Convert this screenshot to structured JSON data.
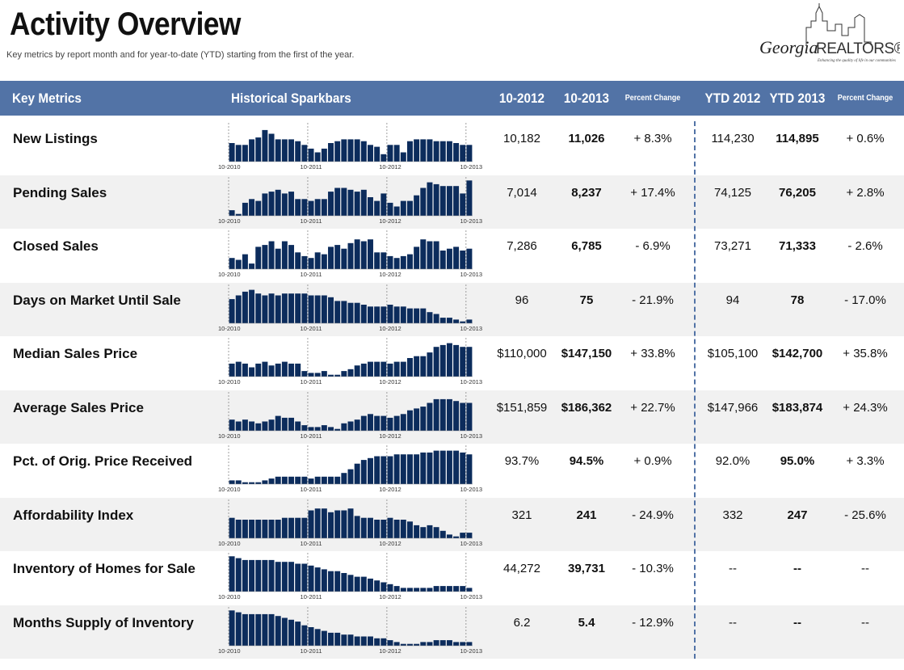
{
  "header": {
    "title": "Activity Overview",
    "subtitle": "Key metrics by report month and for year-to-date (YTD) starting from the first of the year."
  },
  "logo": {
    "script": "Georgia",
    "brand": "REALTORS®",
    "tagline": "Enhancing the quality of life in our communities"
  },
  "table": {
    "columns": [
      "Key Metrics",
      "Historical Sparkbars",
      "10-2012",
      "10-2013",
      "Percent Change",
      "YTD 2012",
      "YTD 2013",
      "Percent Change"
    ],
    "sparkbar_labels": [
      "10-2010",
      "10-2011",
      "10-2012",
      "10-2013"
    ],
    "rows": [
      {
        "metric": "New Listings",
        "sparkbars": [
          50,
          45,
          45,
          60,
          65,
          85,
          75,
          60,
          60,
          60,
          55,
          45,
          35,
          25,
          35,
          50,
          55,
          60,
          60,
          60,
          55,
          45,
          40,
          20,
          45,
          45,
          25,
          55,
          60,
          60,
          60,
          55,
          55,
          55,
          50,
          45,
          45
        ],
        "m2012": "10,182",
        "m2013": "11,026",
        "pct": "+ 8.3%",
        "ytd2012": "114,230",
        "ytd2013": "114,895",
        "ytdpct": "+ 0.6%"
      },
      {
        "metric": "Pending Sales",
        "sparkbars": [
          15,
          5,
          35,
          45,
          40,
          60,
          65,
          70,
          60,
          65,
          45,
          45,
          40,
          45,
          45,
          65,
          75,
          75,
          70,
          65,
          70,
          50,
          40,
          60,
          35,
          25,
          40,
          40,
          55,
          75,
          90,
          85,
          80,
          80,
          80,
          60,
          95
        ],
        "m2012": "7,014",
        "m2013": "8,237",
        "pct": "+ 17.4%",
        "ytd2012": "74,125",
        "ytd2013": "76,205",
        "ytdpct": "+ 2.8%"
      },
      {
        "metric": "Closed Sales",
        "sparkbars": [
          30,
          25,
          40,
          15,
          60,
          65,
          75,
          55,
          75,
          65,
          45,
          35,
          30,
          45,
          40,
          60,
          65,
          55,
          70,
          80,
          75,
          80,
          45,
          45,
          35,
          30,
          35,
          40,
          60,
          80,
          75,
          75,
          50,
          55,
          60,
          50,
          55
        ],
        "m2012": "7,286",
        "m2013": "6,785",
        "pct": "- 6.9%",
        "ytd2012": "73,271",
        "ytd2013": "71,333",
        "ytdpct": "- 2.6%"
      },
      {
        "metric": "Days on Market Until Sale",
        "sparkbars": [
          65,
          75,
          85,
          90,
          80,
          75,
          80,
          75,
          80,
          80,
          80,
          80,
          75,
          75,
          75,
          70,
          60,
          60,
          55,
          55,
          50,
          45,
          45,
          45,
          50,
          45,
          45,
          40,
          40,
          40,
          30,
          25,
          15,
          15,
          10,
          5,
          10
        ],
        "m2012": "96",
        "m2013": "75",
        "pct": "- 21.9%",
        "ytd2012": "94",
        "ytd2013": "78",
        "ytdpct": "- 17.0%"
      },
      {
        "metric": "Median Sales Price",
        "sparkbars": [
          35,
          40,
          35,
          25,
          35,
          40,
          30,
          35,
          40,
          35,
          35,
          15,
          10,
          10,
          15,
          5,
          5,
          15,
          20,
          30,
          35,
          40,
          40,
          40,
          35,
          40,
          40,
          50,
          55,
          55,
          65,
          80,
          85,
          90,
          85,
          80,
          80
        ],
        "m2012": "$110,000",
        "m2013": "$147,150",
        "pct": "+ 33.8%",
        "ytd2012": "$105,100",
        "ytd2013": "$142,700",
        "ytdpct": "+ 35.8%"
      },
      {
        "metric": "Average Sales Price",
        "sparkbars": [
          30,
          25,
          30,
          25,
          20,
          25,
          30,
          40,
          35,
          35,
          25,
          15,
          10,
          10,
          15,
          10,
          5,
          20,
          25,
          30,
          40,
          45,
          40,
          40,
          35,
          40,
          45,
          55,
          60,
          65,
          75,
          85,
          85,
          85,
          80,
          75,
          75
        ],
        "m2012": "$151,859",
        "m2013": "$186,362",
        "pct": "+ 22.7%",
        "ytd2012": "$147,966",
        "ytd2013": "$183,874",
        "ytdpct": "+ 24.3%"
      },
      {
        "metric": "Pct. of Orig. Price Received",
        "sparkbars": [
          10,
          10,
          5,
          5,
          5,
          10,
          15,
          20,
          20,
          20,
          20,
          20,
          15,
          20,
          20,
          20,
          20,
          30,
          40,
          55,
          65,
          70,
          75,
          75,
          75,
          80,
          80,
          80,
          80,
          85,
          85,
          90,
          90,
          90,
          90,
          85,
          80
        ],
        "m2012": "93.7%",
        "m2013": "94.5%",
        "pct": "+ 0.9%",
        "ytd2012": "92.0%",
        "ytd2013": "95.0%",
        "ytdpct": "+ 3.3%"
      },
      {
        "metric": "Affordability Index",
        "sparkbars": [
          55,
          50,
          50,
          50,
          50,
          50,
          50,
          50,
          55,
          55,
          55,
          55,
          75,
          80,
          80,
          70,
          75,
          75,
          80,
          60,
          55,
          55,
          50,
          50,
          55,
          50,
          50,
          45,
          35,
          30,
          35,
          30,
          20,
          10,
          5,
          15,
          15
        ],
        "m2012": "321",
        "m2013": "241",
        "pct": "- 24.9%",
        "ytd2012": "332",
        "ytd2013": "247",
        "ytdpct": "- 25.6%"
      },
      {
        "metric": "Inventory of Homes for Sale",
        "sparkbars": [
          95,
          90,
          85,
          85,
          85,
          85,
          85,
          80,
          80,
          80,
          75,
          75,
          70,
          65,
          60,
          55,
          55,
          50,
          45,
          40,
          40,
          35,
          30,
          25,
          20,
          15,
          10,
          10,
          10,
          10,
          10,
          15,
          15,
          15,
          15,
          15,
          10
        ],
        "m2012": "44,272",
        "m2013": "39,731",
        "pct": "- 10.3%",
        "ytd2012": "--",
        "ytd2013": "--",
        "ytdpct": "--"
      },
      {
        "metric": "Months Supply of Inventory",
        "sparkbars": [
          95,
          90,
          85,
          85,
          85,
          85,
          85,
          80,
          75,
          70,
          65,
          55,
          50,
          45,
          40,
          35,
          35,
          30,
          30,
          25,
          25,
          25,
          20,
          20,
          15,
          10,
          5,
          5,
          5,
          10,
          10,
          15,
          15,
          15,
          10,
          10,
          10
        ],
        "m2012": "6.2",
        "m2013": "5.4",
        "pct": "- 12.9%",
        "ytd2012": "--",
        "ytd2013": "--",
        "ytdpct": "--"
      }
    ]
  }
}
